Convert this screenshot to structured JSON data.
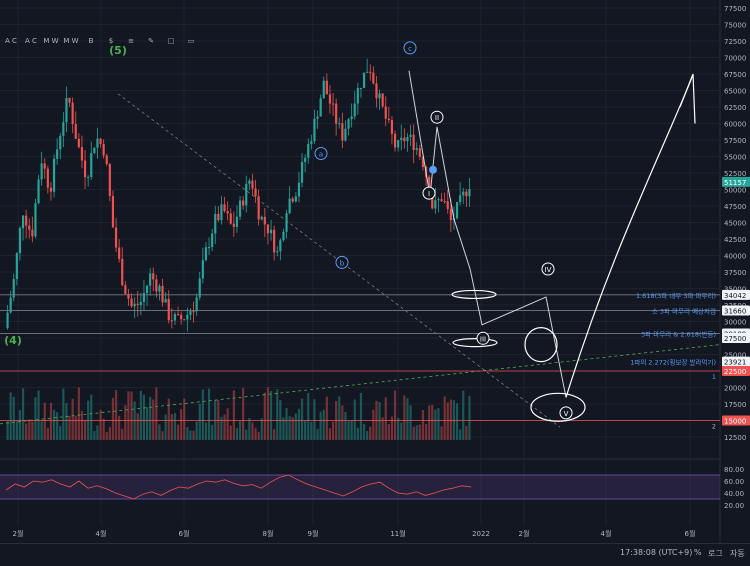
{
  "chart_data": [
    {
      "type": "candlestick",
      "title": "",
      "y_scale": "linear",
      "ylim": [
        12500,
        77500
      ],
      "x_tick_labels": [
        "2월",
        "4월",
        "6월",
        "8월",
        "9월",
        "11월",
        "2022",
        "2월",
        "4월",
        "6월"
      ],
      "y_tick_labels": [
        "77500",
        "75000",
        "72500",
        "70000",
        "67500",
        "65000",
        "62500",
        "60000",
        "57500",
        "55000",
        "52500",
        "50000",
        "47500",
        "45000",
        "42500",
        "40000",
        "37500",
        "35000",
        "32500",
        "30000",
        "27500",
        "25000",
        "22500",
        "20000",
        "17500",
        "15000",
        "12500"
      ],
      "last_price": "51157",
      "price_path": [
        29000,
        36000,
        47000,
        43000,
        55000,
        50000,
        58000,
        64000,
        57000,
        52000,
        58000,
        56000,
        43000,
        36000,
        32000,
        33000,
        37000,
        35000,
        31000,
        30000,
        31000,
        33000,
        40000,
        45000,
        47000,
        44000,
        48000,
        52000,
        46000,
        44000,
        40000,
        48000,
        50000,
        55000,
        60000,
        66000,
        62000,
        58000,
        62000,
        66000,
        69000,
        64000,
        60000,
        56000,
        58000,
        57000,
        54000,
        47000,
        49000,
        45000,
        48000,
        51000
      ],
      "labels": [
        {
          "text": "34042",
          "kind": "price-tag"
        },
        {
          "text": "31660",
          "kind": "price-tag"
        },
        {
          "text": "28189",
          "kind": "price-tag"
        },
        {
          "text": "27500",
          "kind": "price-tag"
        },
        {
          "text": "23921",
          "kind": "price-tag"
        },
        {
          "text": "22500",
          "kind": "price-tag-red"
        },
        {
          "text": "15000",
          "kind": "price-tag-red"
        }
      ],
      "annotations": [
        {
          "text": "1.618(3파 내부 3파 마무리)",
          "color": "#5b9cf6"
        },
        {
          "text": "소 3파 마무리 예상지점",
          "color": "#5b9cf6"
        },
        {
          "text": "3파 마무리 & 2.618(반등)",
          "color": "#5b9cf6"
        },
        {
          "text": "1파의 2.272(횡보장 발라먹기)",
          "color": "#5b9cf6"
        },
        {
          "text": "1",
          "color": "#5b9cf6"
        },
        {
          "text": "2",
          "color": "#b2b5be"
        }
      ],
      "wave_labels": [
        "(5)",
        "(4)",
        "a",
        "b",
        "c",
        "I",
        "II",
        "III",
        "IV",
        "V"
      ],
      "colors": {
        "up": "#26a69a",
        "down": "#ef5350",
        "background": "#131722",
        "green_label": "#4caf50",
        "blue_label": "#5b9cf6"
      }
    },
    {
      "type": "line",
      "title": "",
      "ylim": [
        15,
        90
      ],
      "y_tick_labels": [
        "80.00",
        "60.00",
        "40.00",
        "20.00"
      ],
      "band": [
        30,
        70
      ],
      "series": [
        {
          "values": [
            45,
            55,
            50,
            60,
            58,
            62,
            55,
            50,
            60,
            48,
            52,
            47,
            40,
            35,
            30,
            38,
            42,
            36,
            44,
            50,
            48,
            55,
            60,
            58,
            62,
            56,
            52,
            54,
            48,
            58,
            66,
            70,
            62,
            55,
            50,
            45,
            40,
            35,
            42,
            50,
            55,
            58,
            48,
            40,
            38,
            42,
            36,
            40,
            45,
            48,
            52,
            50
          ]
        }
      ],
      "colors": {
        "line": "#ef5350",
        "band": "#7e57c2"
      }
    }
  ],
  "toolbar": {
    "icons": [
      "A C",
      "A C",
      "M W",
      "M W",
      "B",
      "$",
      "≡",
      "✎",
      "□",
      "▭"
    ]
  },
  "footer": {
    "clock": "17:38:08 (UTC+9)",
    "percent": "%",
    "log": "로그",
    "auto": "자동"
  }
}
